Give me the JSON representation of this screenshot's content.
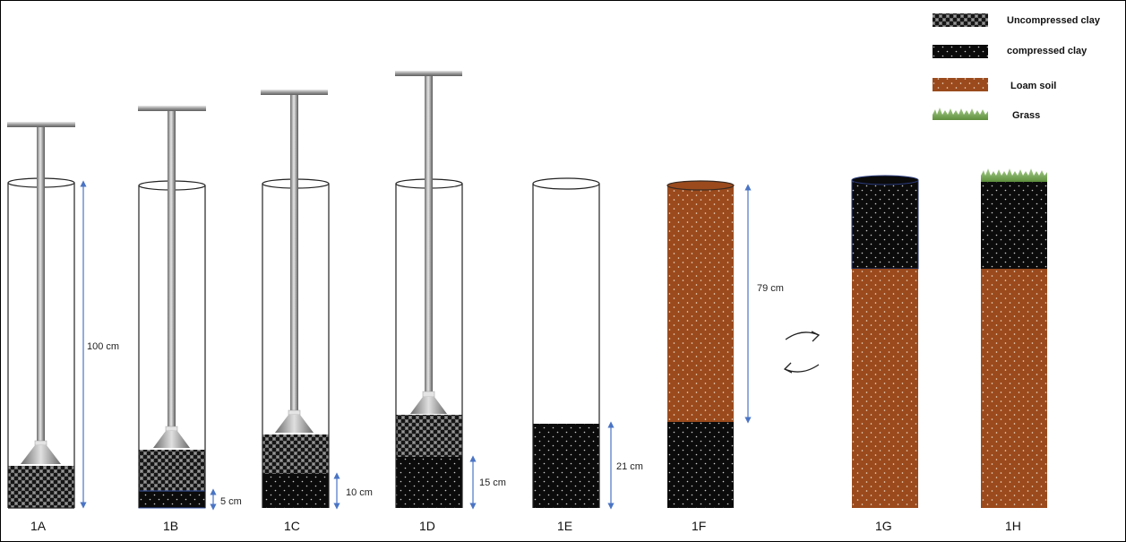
{
  "legend": [
    {
      "key": "uncompressed",
      "label": "Uncompressed clay",
      "swatch": "uncompressed-clay"
    },
    {
      "key": "compressed",
      "label": "compressed clay",
      "swatch": "compressed-clay"
    },
    {
      "key": "loam",
      "label": "Loam soil",
      "swatch": "loam-soil"
    },
    {
      "key": "grass",
      "label": "Grass",
      "swatch": "grass"
    }
  ],
  "columns": [
    {
      "id": "1A",
      "label": "1A"
    },
    {
      "id": "1B",
      "label": "1B"
    },
    {
      "id": "1C",
      "label": "1C"
    },
    {
      "id": "1D",
      "label": "1D"
    },
    {
      "id": "1E",
      "label": "1E"
    },
    {
      "id": "1F",
      "label": "1F"
    },
    {
      "id": "1G",
      "label": "1G"
    },
    {
      "id": "1H",
      "label": "1H"
    }
  ],
  "dimensions": {
    "1A": "100 cm",
    "1B": "5 cm",
    "1C": "10 cm",
    "1D": "15 cm",
    "1E": "21 cm",
    "1F": "79 cm"
  },
  "colors": {
    "loam": "#9a4a1c",
    "compressed": "#0b0b0b",
    "arrow": "#4a74c4",
    "outline": "#222222"
  },
  "icons": {
    "swap": "circular-arrows-icon",
    "rammer": "tamper-tool-icon"
  }
}
